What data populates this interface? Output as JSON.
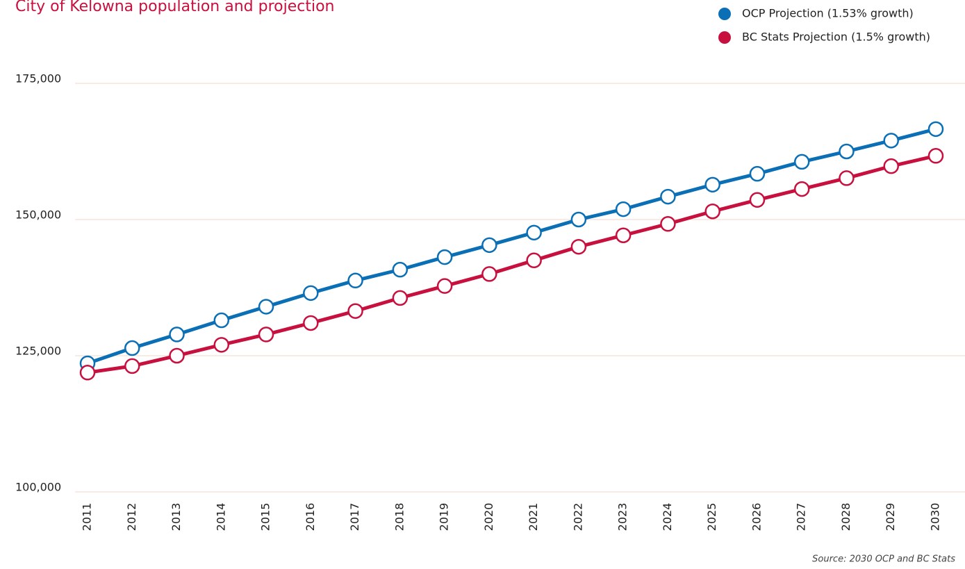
{
  "chart_data": {
    "type": "line",
    "title": "City of Kelowna population and projection",
    "source": "Source: 2030 OCP and BC Stats",
    "categories": [
      "2011",
      "2012",
      "2013",
      "2014",
      "2015",
      "2016",
      "2017",
      "2018",
      "2019",
      "2020",
      "2021",
      "2022",
      "2023",
      "2024",
      "2025",
      "2026",
      "2027",
      "2028",
      "2029",
      "2030"
    ],
    "series": [
      {
        "name": "OCP Projection (1.53% growth)",
        "color": "#0a6fb5",
        "values": [
          123600,
          126400,
          128900,
          131500,
          134000,
          136500,
          138800,
          140800,
          143100,
          145300,
          147600,
          150000,
          151900,
          154200,
          156400,
          158400,
          160600,
          162500,
          164500,
          166600
        ]
      },
      {
        "name": "BC Stats Projection (1.5% growth)",
        "color": "#c8103e",
        "values": [
          121900,
          123100,
          125000,
          127000,
          128900,
          131000,
          133200,
          135600,
          137800,
          140000,
          142500,
          145000,
          147100,
          149200,
          151500,
          153600,
          155600,
          157600,
          159800,
          161700
        ]
      }
    ],
    "ylim": [
      100000,
      175000
    ],
    "yticks": [
      {
        "value": 100000,
        "label": "100,000"
      },
      {
        "value": 125000,
        "label": "125,000"
      },
      {
        "value": 150000,
        "label": "150,000"
      },
      {
        "value": 175000,
        "label": "175,000"
      }
    ],
    "grid": true,
    "legend": "top-right"
  }
}
